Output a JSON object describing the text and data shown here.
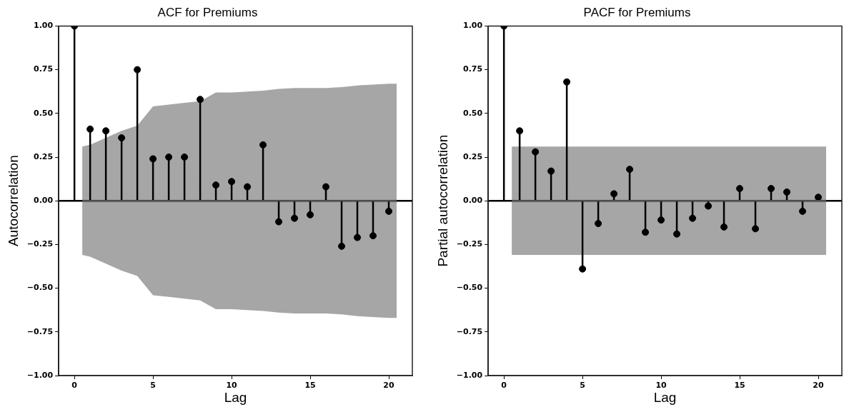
{
  "chart_data": [
    {
      "type": "lollipop",
      "title": "ACF for Premiums",
      "xlabel": "Lag",
      "ylabel": "Autocorrelation",
      "xlim": [
        -1,
        21.5
      ],
      "xticks": [
        0,
        5,
        10,
        15,
        20
      ],
      "ylim": [
        -1,
        1
      ],
      "yticks": [
        {
          "value": -1,
          "label": "−1.00"
        },
        {
          "value": -0.75,
          "label": "−0.75"
        },
        {
          "value": -0.5,
          "label": "−0.50"
        },
        {
          "value": -0.25,
          "label": "−0.25"
        },
        {
          "value": 0,
          "label": "0.00"
        },
        {
          "value": 0.25,
          "label": "0.25"
        },
        {
          "value": 0.5,
          "label": "0.50"
        },
        {
          "value": 0.75,
          "label": "0.75"
        },
        {
          "value": 1,
          "label": "1.00"
        }
      ],
      "grid": false,
      "legend": false,
      "ref_lines": [
        {
          "axis": "y",
          "value": 0,
          "color": "#000000"
        }
      ],
      "series": [
        {
          "type": "line",
          "color": "#a6a6a6",
          "x": [
            0.5,
            1,
            2,
            3,
            4,
            5,
            6,
            7,
            8,
            9,
            10,
            11,
            12,
            13,
            14,
            15,
            16,
            17,
            18,
            19,
            20,
            20.5
          ],
          "values": [
            0,
            0,
            0,
            0,
            0,
            0,
            0,
            0,
            0,
            0,
            0,
            0,
            0,
            0,
            0,
            0,
            0,
            0,
            0,
            0,
            0,
            0
          ],
          "lower": [
            -0.31,
            -0.32,
            -0.36,
            -0.4,
            -0.43,
            -0.54,
            -0.55,
            -0.56,
            -0.57,
            -0.62,
            -0.62,
            -0.625,
            -0.63,
            -0.64,
            -0.645,
            -0.645,
            -0.645,
            -0.65,
            -0.66,
            -0.665,
            -0.67,
            -0.67
          ],
          "upper": [
            0.31,
            0.32,
            0.36,
            0.4,
            0.43,
            0.54,
            0.55,
            0.56,
            0.57,
            0.62,
            0.62,
            0.625,
            0.63,
            0.64,
            0.645,
            0.645,
            0.645,
            0.65,
            0.66,
            0.665,
            0.67,
            0.67
          ]
        },
        {
          "type": "lollipop",
          "color": "#000000",
          "marker": "circle",
          "x": [
            0,
            1,
            2,
            3,
            4,
            5,
            6,
            7,
            8,
            9,
            10,
            11,
            12,
            13,
            14,
            15,
            16,
            17,
            18,
            19,
            20
          ],
          "values": [
            1,
            0.41,
            0.4,
            0.36,
            0.75,
            0.24,
            0.25,
            0.25,
            0.58,
            0.09,
            0.11,
            0.08,
            0.32,
            -0.12,
            -0.1,
            -0.08,
            0.08,
            -0.26,
            -0.21,
            -0.2,
            -0.06
          ]
        }
      ]
    },
    {
      "type": "lollipop",
      "title": "PACF for Premiums",
      "xlabel": "Lag",
      "ylabel": "Partial autocorrelation",
      "xlim": [
        -1,
        21.5
      ],
      "xticks": [
        0,
        5,
        10,
        15,
        20
      ],
      "ylim": [
        -1,
        1
      ],
      "yticks": [
        {
          "value": -1,
          "label": "−1.00"
        },
        {
          "value": -0.75,
          "label": "−0.75"
        },
        {
          "value": -0.5,
          "label": "−0.50"
        },
        {
          "value": -0.25,
          "label": "−0.25"
        },
        {
          "value": 0,
          "label": "0.00"
        },
        {
          "value": 0.25,
          "label": "0.25"
        },
        {
          "value": 0.5,
          "label": "0.50"
        },
        {
          "value": 0.75,
          "label": "0.75"
        },
        {
          "value": 1,
          "label": "1.00"
        }
      ],
      "grid": false,
      "legend": false,
      "ref_lines": [
        {
          "axis": "y",
          "value": 0,
          "color": "#000000"
        }
      ],
      "series": [
        {
          "type": "line",
          "color": "#a6a6a6",
          "x": [
            0.5,
            20.5
          ],
          "values": [
            0,
            0
          ],
          "lower": [
            -0.31,
            -0.31
          ],
          "upper": [
            0.31,
            0.31
          ]
        },
        {
          "type": "lollipop",
          "color": "#000000",
          "marker": "circle",
          "x": [
            0,
            1,
            2,
            3,
            4,
            5,
            6,
            7,
            8,
            9,
            10,
            11,
            12,
            13,
            14,
            15,
            16,
            17,
            18,
            19,
            20
          ],
          "values": [
            1,
            0.4,
            0.28,
            0.17,
            0.68,
            -0.39,
            -0.13,
            0.04,
            0.18,
            -0.18,
            -0.11,
            -0.19,
            -0.1,
            -0.03,
            -0.15,
            0.07,
            -0.16,
            0.07,
            0.05,
            -0.06,
            0.02
          ]
        }
      ]
    }
  ]
}
